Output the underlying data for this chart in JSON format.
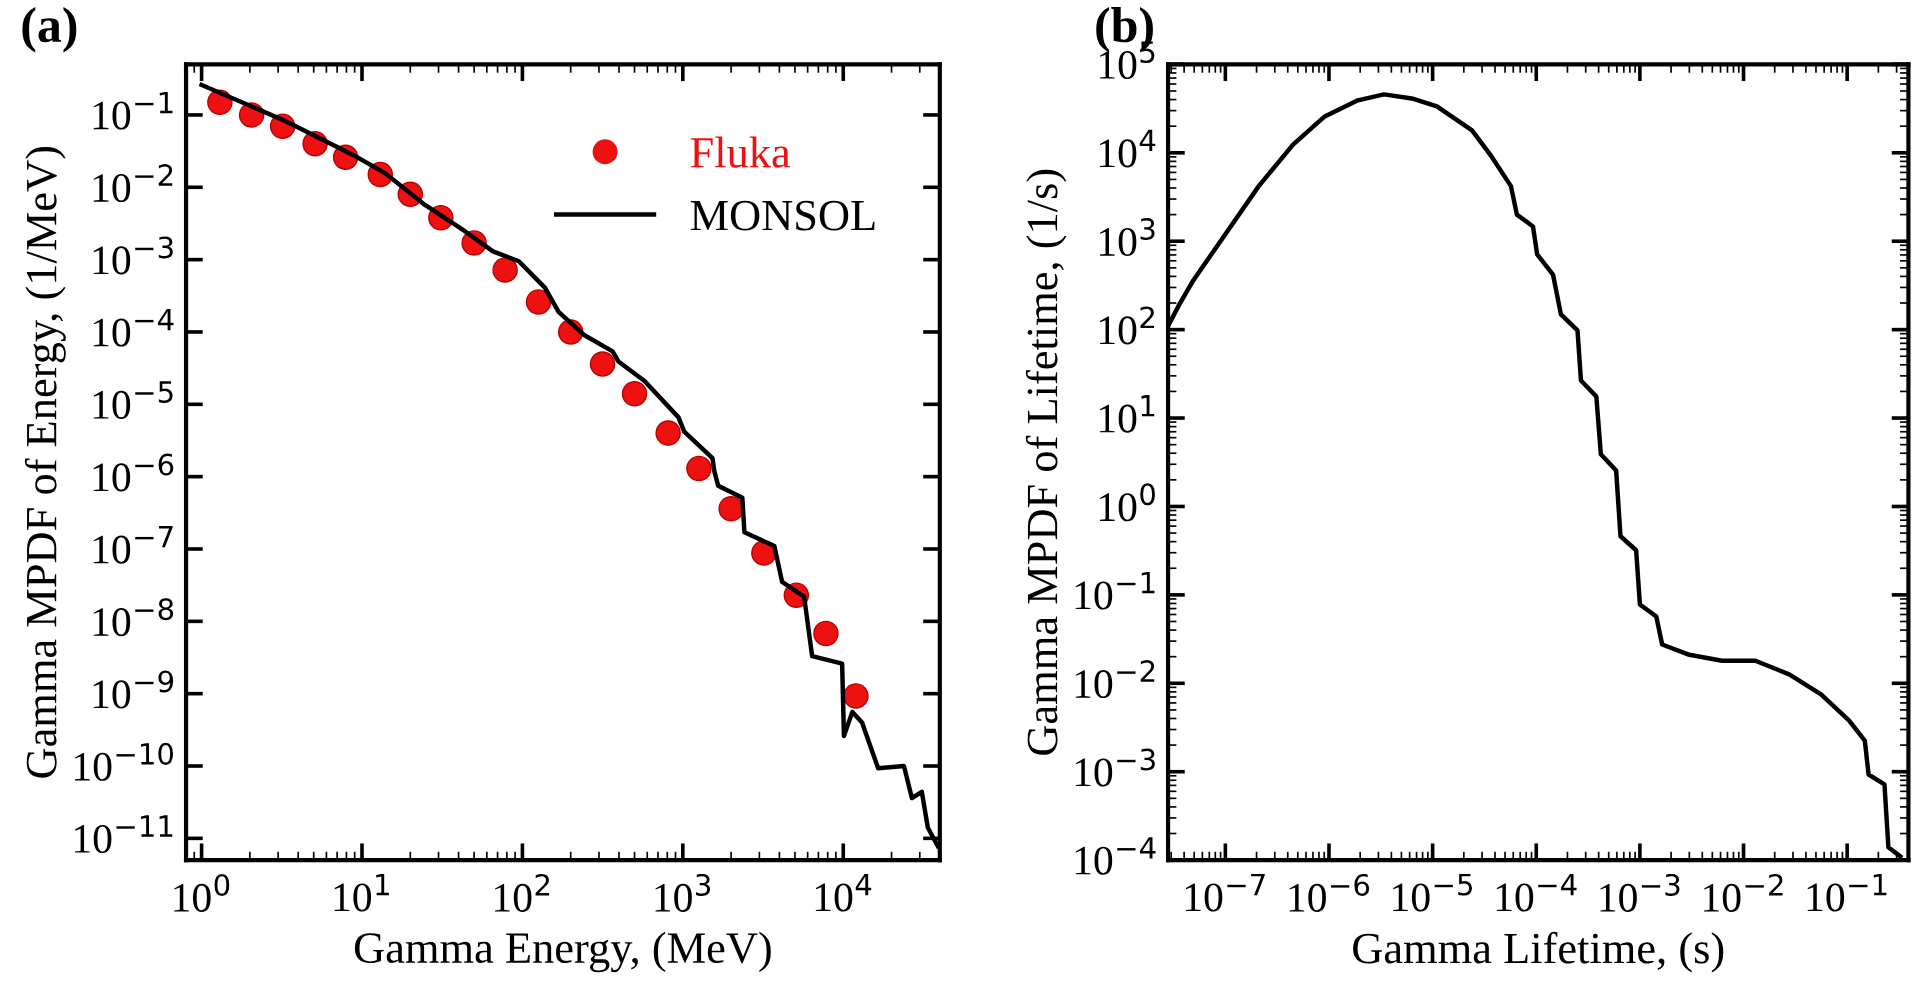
{
  "chart_data": [
    {
      "type": "line",
      "title": "(a)",
      "xlabel": "Gamma Energy, (MeV)",
      "ylabel": "Gamma MPDF of Energy, (1/MeV)",
      "log": "xy",
      "legend": "top right",
      "xlim": [
        0.8,
        40000
      ],
      "ylim": [
        5e-12,
        0.5
      ],
      "xticks": [
        {
          "value": 1,
          "label": "10$^{0}$"
        },
        {
          "value": 10,
          "label": "10$^{1}$"
        },
        {
          "value": 100,
          "label": "10$^{2}$"
        },
        {
          "value": 1000,
          "label": "10$^{3}$"
        },
        {
          "value": 10000,
          "label": "10$^{4}$"
        }
      ],
      "yticks": [
        {
          "value": 0.1,
          "label": "10$^{−1}$"
        },
        {
          "value": 0.01,
          "label": "10$^{−2}$"
        },
        {
          "value": 0.001,
          "label": "10$^{−3}$"
        },
        {
          "value": 0.0001,
          "label": "10$^{−4}$"
        },
        {
          "value": 1e-05,
          "label": "10$^{−5}$"
        },
        {
          "value": 1e-06,
          "label": "10$^{−6}$"
        },
        {
          "value": 1e-07,
          "label": "10$^{−7}$"
        },
        {
          "value": 1e-08,
          "label": "10$^{−8}$"
        },
        {
          "value": 1e-09,
          "label": "10$^{−9}$"
        },
        {
          "value": 1e-10,
          "label": "10$^{−10}$"
        },
        {
          "value": 1e-11,
          "label": "10$^{−11}$"
        }
      ],
      "series": [
        {
          "name": "Fluka",
          "type": "scatter",
          "marker": "circle",
          "color": "#ee1111",
          "x": [
            1.3,
            2.05,
            3.2,
            5.1,
            7.9,
            13,
            20,
            31,
            50,
            78,
            126,
            200,
            316,
            500,
            810,
            1260,
            2000,
            3200,
            5100,
            7800,
            12000
          ],
          "values": [
            0.15,
            0.1,
            0.07,
            0.04,
            0.026,
            0.015,
            0.008,
            0.0038,
            0.0017,
            0.00072,
            0.00026,
            0.0001,
            3.6e-05,
            1.4e-05,
            4e-06,
            1.3e-06,
            3.6e-07,
            8.8e-08,
            2.3e-08,
            6.8e-09,
            9.3e-10
          ]
        },
        {
          "name": "MONSOL",
          "color": "#000000",
          "x": [
            1,
            3.3,
            8.8,
            13.9,
            24.7,
            43.8,
            65.5,
            95,
            138,
            168,
            244,
            365,
            397,
            577,
            940,
            1020,
            1530,
            1570,
            1660,
            2350,
            2420,
            3720,
            4160,
            5700,
            6400,
            9840,
            10100,
            11400,
            13100,
            16500,
            23900,
            26800,
            30900,
            33700,
            38900
          ],
          "values": [
            0.26,
            0.083,
            0.028,
            0.0157,
            0.0057,
            0.00247,
            0.0013,
            0.00095,
            0.00041,
            0.00019,
            9e-05,
            5.4e-05,
            3.9e-05,
            2.1e-05,
            6.6e-06,
            4.2e-06,
            1.8e-06,
            1.2e-06,
            7.5e-07,
            5.1e-07,
            1.7e-07,
            1.1e-07,
            3.5e-08,
            2.2e-08,
            3.3e-09,
            2.6e-09,
            2.6e-10,
            5.6e-10,
            4e-10,
            9.3e-11,
            1e-10,
            3.6e-11,
            4.4e-11,
            1.4e-11,
            7.8e-12
          ]
        }
      ]
    },
    {
      "type": "line",
      "title": "(b)",
      "xlabel": "Gamma Lifetime, (s)",
      "ylabel": "Gamma MPDF of Lifetime, (1/s)",
      "log": "xy",
      "legend": false,
      "xlim": [
        2.8e-08,
        0.39
      ],
      "ylim": [
        0.0001,
        100000
      ],
      "xticks": [
        {
          "value": 1e-07,
          "label": "10$^{−7}$"
        },
        {
          "value": 1e-06,
          "label": "10$^{−6}$"
        },
        {
          "value": 1e-05,
          "label": "10$^{−5}$"
        },
        {
          "value": 0.0001,
          "label": "10$^{−4}$"
        },
        {
          "value": 0.001,
          "label": "10$^{−3}$"
        },
        {
          "value": 0.01,
          "label": "10$^{−2}$"
        },
        {
          "value": 0.1,
          "label": "10$^{−1}$"
        }
      ],
      "yticks": [
        {
          "value": 0.0001,
          "label": "10$^{−4}$"
        },
        {
          "value": 0.001,
          "label": "10$^{−3}$"
        },
        {
          "value": 0.01,
          "label": "10$^{−2}$"
        },
        {
          "value": 0.1,
          "label": "10$^{−1}$"
        },
        {
          "value": 1,
          "label": "10$^{0}$"
        },
        {
          "value": 10,
          "label": "10$^{1}$"
        },
        {
          "value": 100,
          "label": "10$^{2}$"
        },
        {
          "value": 1000,
          "label": "10$^{3}$"
        },
        {
          "value": 10000,
          "label": "10$^{4}$"
        },
        {
          "value": 100000,
          "label": "10$^{5}$"
        }
      ],
      "series": [
        {
          "color": "#000000",
          "x": [
            2.8e-08,
            3.6e-08,
            4.9e-08,
            1e-07,
            2.1e-07,
            4.5e-07,
            9.1e-07,
            1.9e-06,
            3.4e-06,
            6.3e-06,
            1.1e-05,
            2.4e-05,
            3.7e-05,
            5.7e-05,
            6.5e-05,
            9.3e-05,
            0.000102,
            0.000145,
            0.000173,
            0.00025,
            0.00027,
            0.00038,
            0.00042,
            0.00059,
            0.00065,
            0.00092,
            0.001,
            0.00144,
            0.00164,
            0.003,
            0.0062,
            0.013,
            0.0276,
            0.056,
            0.104,
            0.148,
            0.161,
            0.229,
            0.25,
            0.326
          ],
          "values": [
            110,
            193,
            360,
            1200,
            4200,
            12400,
            25800,
            39200,
            45800,
            41200,
            33500,
            17900,
            9100,
            4200,
            2000,
            1470,
            710,
            420,
            149,
            98,
            26.6,
            17.5,
            3.9,
            2.55,
            0.46,
            0.32,
            0.078,
            0.057,
            0.0275,
            0.021,
            0.018,
            0.018,
            0.0126,
            0.0075,
            0.0038,
            0.00225,
            0.00093,
            0.00072,
            0.00014,
            0.00011
          ]
        }
      ]
    }
  ]
}
